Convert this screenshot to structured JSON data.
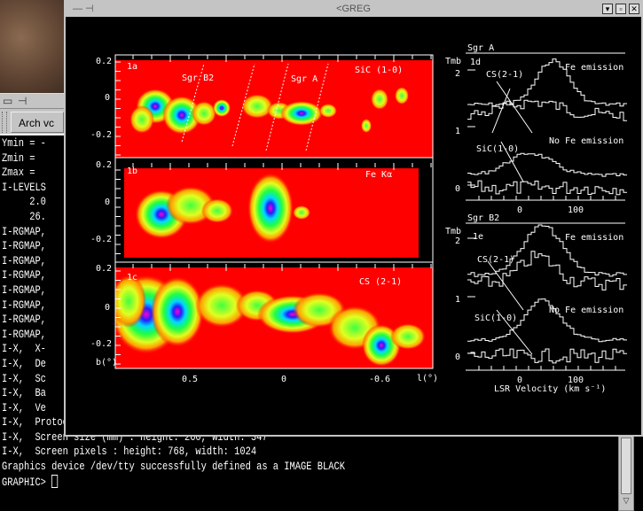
{
  "terminal": {
    "toolbar": {
      "arch_button": "Arch vc"
    },
    "lines": [
      "Ymin = -",
      "Zmin =",
      "Zmax =",
      "I-LEVELS",
      "     2.0",
      "     26.",
      "I-RGMAP,",
      "I-RGMAP,",
      "I-RGMAP,",
      "I-RGMAP,",
      "I-RGMAP,",
      "I-RGMAP,",
      "I-RGMAP,",
      "I-RGMAP,",
      "I-X,  X-",
      "I-X,  De",
      "I-X,  Sc",
      "I-X,  Ba",
      "I-X,  Ve",
      "I-X,  Protocol X11 revision: 0",
      "I-X,  Screen size (mm) : height: 260, width: 347",
      "I-X,  Screen pixels : height: 768, width: 1024",
      "Graphics device /dev/tty successfully defined as a IMAGE BLACK"
    ],
    "prompt": "GRAPHIC> "
  },
  "greg_window": {
    "title": "<GREG",
    "buttons": [
      "minimize",
      "maximize",
      "close"
    ]
  },
  "maps": {
    "panels": [
      {
        "id": "1a",
        "line": "SiC (1-0)",
        "sources": [
          "Sgr B2",
          "Sgr A"
        ],
        "yticks": [
          "0.2",
          "0",
          "-0.2"
        ]
      },
      {
        "id": "1b",
        "line": "Fe Kα",
        "yticks": [
          "0.2",
          "0",
          "-0.2"
        ]
      },
      {
        "id": "1c",
        "line": "CS (2-1)",
        "yticks": [
          "0.2",
          "0",
          "-0.2"
        ]
      }
    ],
    "ylabel": "b(°)",
    "xticks": [
      "0.5",
      "0",
      "-0.6"
    ],
    "xlabel": "l(°)",
    "colors": {
      "background": "#ff0000",
      "contours": "#ffffff"
    }
  },
  "spectra": {
    "panels": [
      {
        "source": "Sgr A",
        "id": "1d",
        "yticks": [
          "2",
          "1",
          "0"
        ],
        "cs_label": "CS(2-1)",
        "sic_label": "SiC(1-0)",
        "fe": "Fe emission",
        "nofe": "No Fe emission",
        "xticks": [
          "0",
          "100"
        ]
      },
      {
        "source": "Sgr B2",
        "id": "1e",
        "yticks": [
          "2",
          "1",
          "0"
        ],
        "cs_label": "CS(2-1)",
        "sic_label": "SiC(1-0)",
        "fe": "Fe emission",
        "nofe": "No Fe emission",
        "xticks": [
          "0",
          "100"
        ]
      }
    ],
    "ylabel": "Tmb",
    "xlabel": "LSR Velocity (km s⁻¹)"
  }
}
